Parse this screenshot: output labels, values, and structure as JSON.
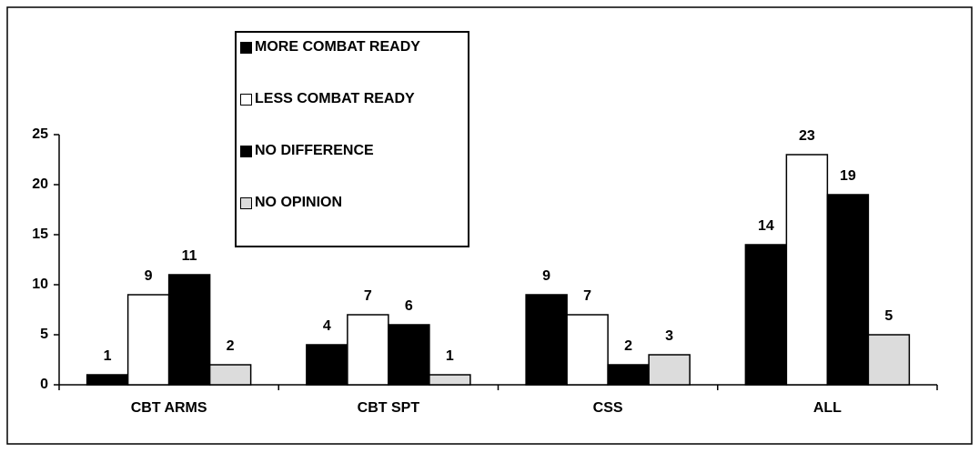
{
  "chart_data": {
    "type": "bar",
    "categories": [
      "CBT ARMS",
      "CBT SPT",
      "CSS",
      "ALL"
    ],
    "series": [
      {
        "name": "MORE COMBAT READY",
        "color": "#000000",
        "values": [
          1,
          4,
          9,
          14
        ]
      },
      {
        "name": "LESS COMBAT READY",
        "color": "#ffffff",
        "values": [
          9,
          7,
          7,
          23
        ]
      },
      {
        "name": "NO DIFFERENCE",
        "color": "#000000",
        "values": [
          11,
          6,
          2,
          19
        ]
      },
      {
        "name": "NO OPINION",
        "color": "#dcdcdc",
        "values": [
          2,
          1,
          3,
          5
        ]
      }
    ],
    "ylim": [
      0,
      25
    ],
    "yticks": [
      0,
      5,
      10,
      15,
      20,
      25
    ],
    "grid": false,
    "legend": "top-left"
  }
}
